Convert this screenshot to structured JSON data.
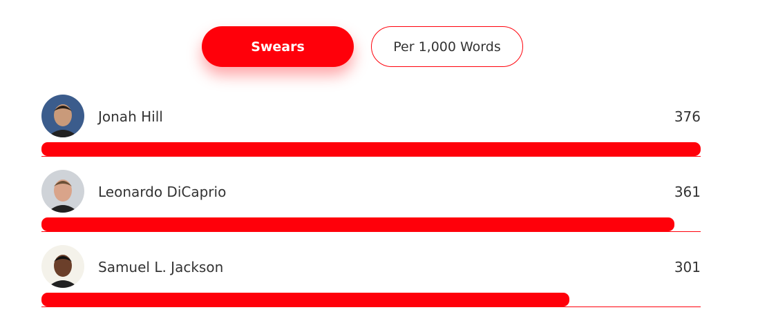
{
  "toggle": {
    "options": [
      {
        "label": "Swears",
        "active": true
      },
      {
        "label": "Per 1,000 Words",
        "active": false
      }
    ]
  },
  "accent_color": "#ff000a",
  "max_value": 376,
  "rows": [
    {
      "name": "Jonah Hill",
      "value": 376,
      "avatar_bg": "#3b5c8c",
      "skin": "#c99a7a",
      "hair": "#2a2018"
    },
    {
      "name": "Leonardo DiCaprio",
      "value": 361,
      "avatar_bg": "#cfd3d8",
      "skin": "#d9a48a",
      "hair": "#6b5036"
    },
    {
      "name": "Samuel L. Jackson",
      "value": 301,
      "avatar_bg": "#f4f2ea",
      "skin": "#6b3f2a",
      "hair": "#111111"
    }
  ]
}
